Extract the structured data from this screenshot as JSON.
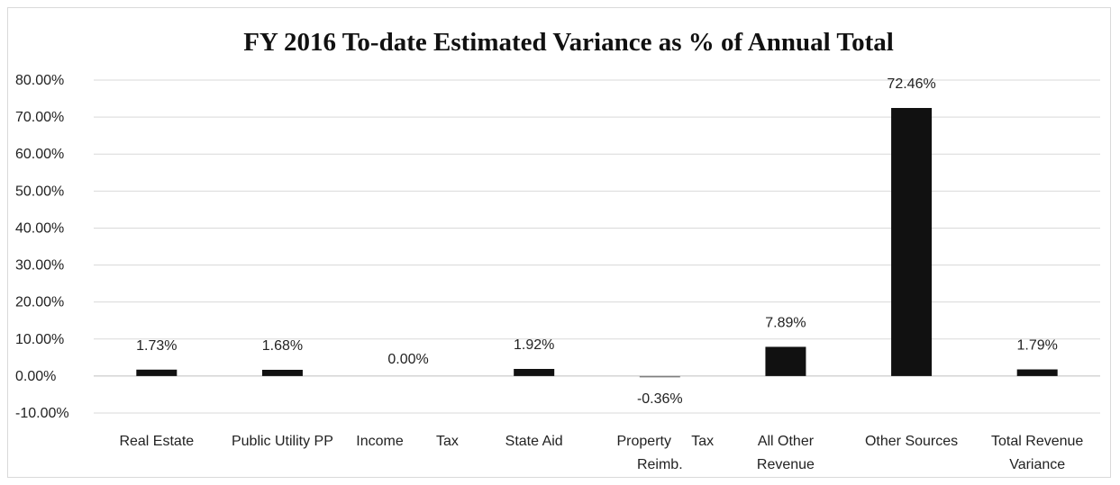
{
  "chart_data": {
    "type": "bar",
    "title": "FY 2016 To-date Estimated Variance as % of Annual Total",
    "xlabel": "",
    "ylabel": "",
    "ylim": [
      -10,
      80
    ],
    "yticks": [
      80,
      70,
      60,
      50,
      40,
      30,
      20,
      10,
      0,
      -10
    ],
    "ytick_labels": [
      "80.00%",
      "70.00%",
      "60.00%",
      "50.00%",
      "40.00%",
      "30.00%",
      "20.00%",
      "10.00%",
      "0.00%",
      "-10.00%"
    ],
    "grid": true,
    "legend": "none",
    "bar_color": "#111111",
    "categories": [
      [
        "Real Estate"
      ],
      [
        "Public Utility PP"
      ],
      [
        "Income",
        "Tax"
      ],
      [
        "State Aid"
      ],
      [
        "Property",
        "Tax",
        "Reimb."
      ],
      [
        "All Other",
        "Revenue"
      ],
      [
        "Other Sources"
      ],
      [
        "Total Revenue",
        "Variance"
      ]
    ],
    "values": [
      1.73,
      1.68,
      0.0,
      1.92,
      -0.36,
      7.89,
      72.46,
      1.79
    ],
    "data_labels": [
      "1.73%",
      "1.68%",
      "0.00%",
      "1.92%",
      "-0.36%",
      "7.89%",
      "72.46%",
      "1.79%"
    ]
  }
}
